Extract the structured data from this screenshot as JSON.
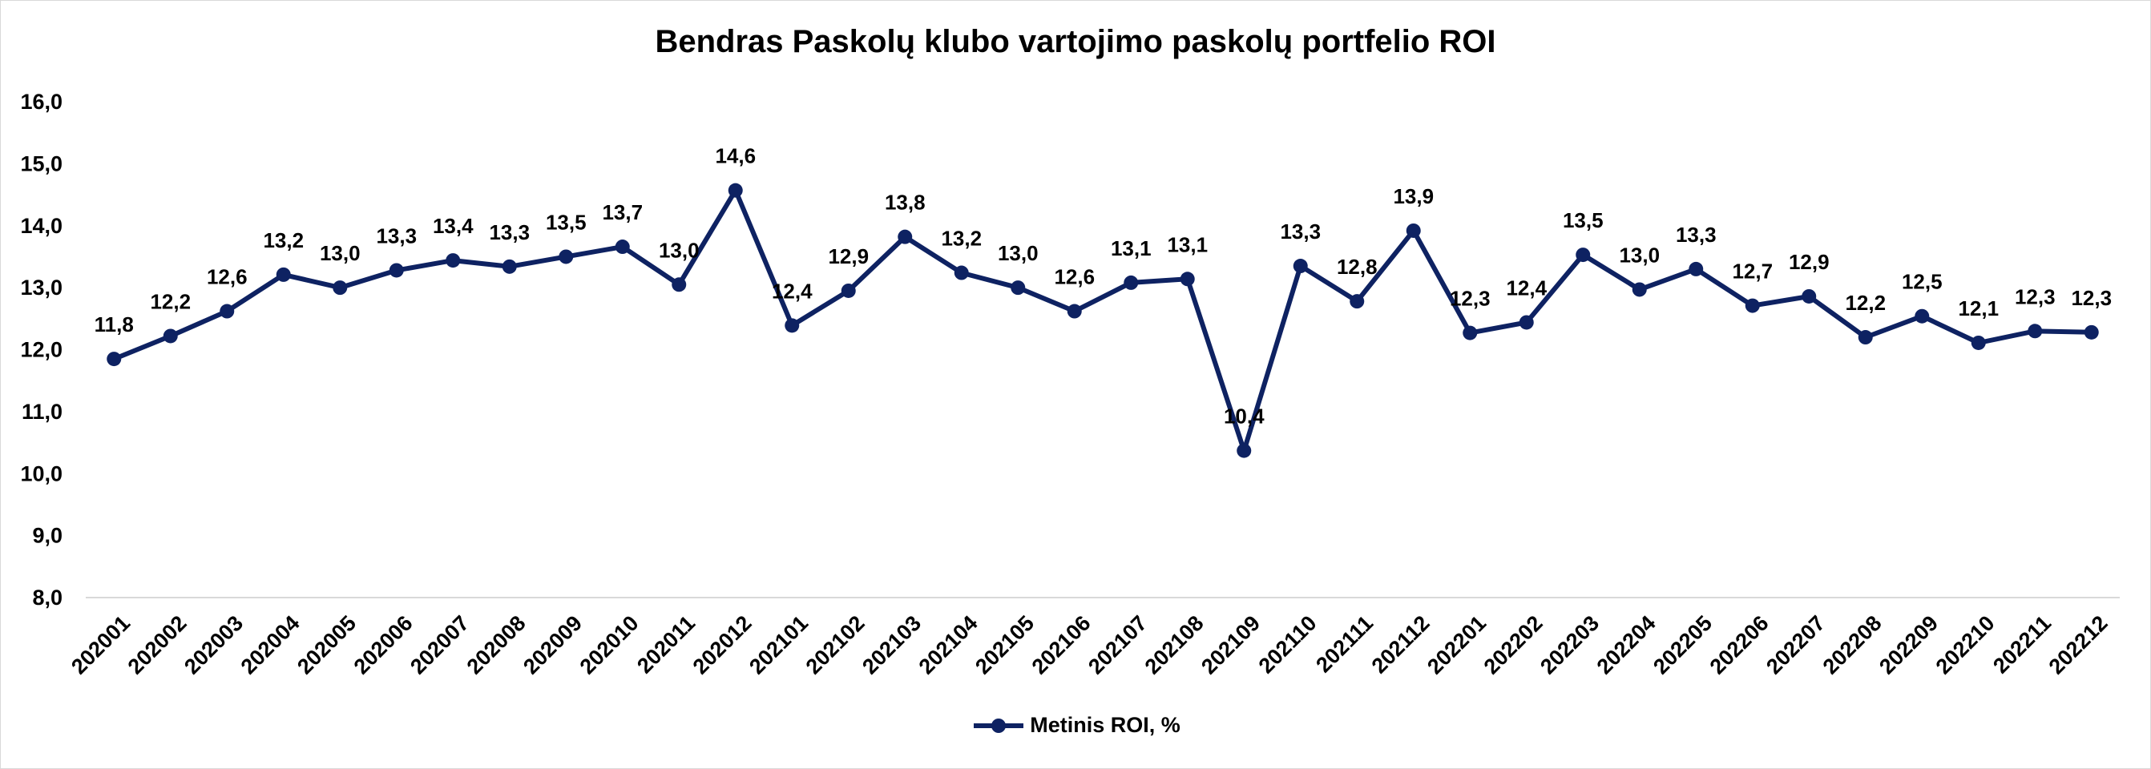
{
  "chart_data": {
    "type": "line",
    "title": "Bendras Paskolų klubo vartojimo paskolų portfelio ROI",
    "xlabel": "",
    "ylabel": "",
    "ylim": [
      8.0,
      16.0
    ],
    "yticks": [
      "8,0",
      "9,0",
      "10,0",
      "11,0",
      "12,0",
      "13,0",
      "14,0",
      "15,0",
      "16,0"
    ],
    "grid": false,
    "legend_position": "bottom",
    "line_color": "#0e2262",
    "categories": [
      "202001",
      "202002",
      "202003",
      "202004",
      "202005",
      "202006",
      "202007",
      "202008",
      "202009",
      "202010",
      "202011",
      "202012",
      "202101",
      "202102",
      "202103",
      "202104",
      "202105",
      "202106",
      "202107",
      "202108",
      "202109",
      "202110",
      "202111",
      "202112",
      "202201",
      "202202",
      "202203",
      "202204",
      "202205",
      "202206",
      "202207",
      "202208",
      "202209",
      "202210",
      "202211",
      "202212"
    ],
    "series": [
      {
        "name": "Metinis ROI, %",
        "values": [
          11.85,
          12.22,
          12.62,
          13.21,
          13.0,
          13.28,
          13.44,
          13.34,
          13.5,
          13.66,
          13.05,
          14.57,
          12.39,
          12.95,
          13.82,
          13.24,
          13.0,
          12.62,
          13.08,
          13.14,
          10.37,
          13.35,
          12.78,
          13.92,
          12.27,
          12.44,
          13.53,
          12.97,
          13.3,
          12.71,
          12.86,
          12.2,
          12.54,
          12.11,
          12.3,
          12.28
        ],
        "labels": [
          "11,8",
          "12,2",
          "12,6",
          "13,2",
          "13,0",
          "13,3",
          "13,4",
          "13,3",
          "13,5",
          "13,7",
          "13,0",
          "14,6",
          "12,4",
          "12,9",
          "13,8",
          "13,2",
          "13,0",
          "12,6",
          "13,1",
          "13,1",
          "10,4",
          "13,3",
          "12,8",
          "13,9",
          "12,3",
          "12,4",
          "13,5",
          "13,0",
          "13,3",
          "12,7",
          "12,9",
          "12,2",
          "12,5",
          "12,1",
          "12,3",
          "12,3"
        ]
      }
    ]
  }
}
